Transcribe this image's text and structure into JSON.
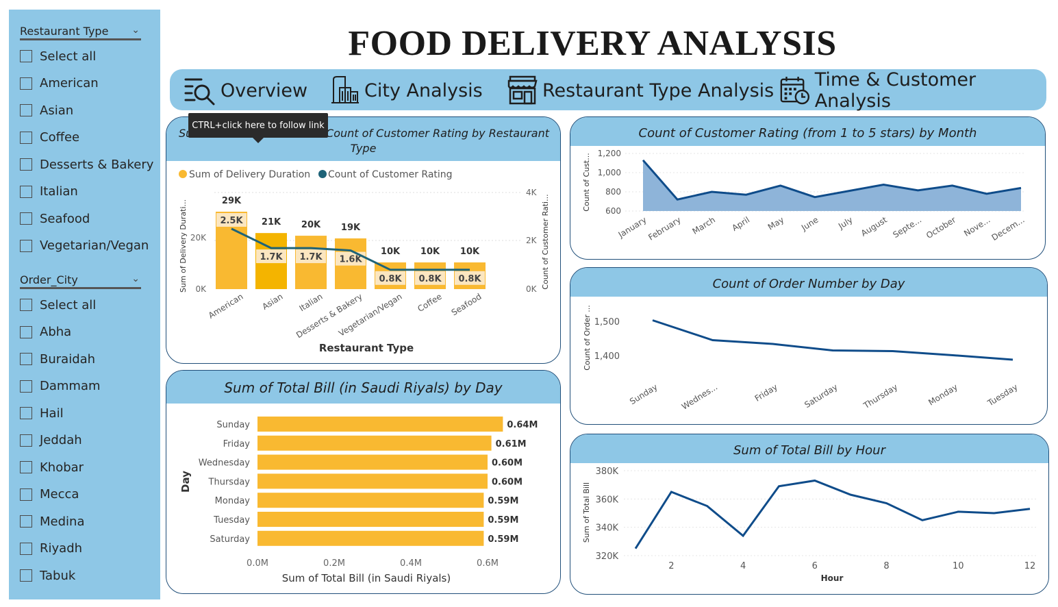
{
  "title": "FOOD DELIVERY ANALYSIS",
  "colors": {
    "panel": "#8ec7e6",
    "bar": "#f9b931",
    "bar_dark": "#f4b400",
    "line": "#0f4c8a",
    "line_teal": "#1e6378",
    "area": "#8eb4d9"
  },
  "slicer_restaurant": {
    "title": "Restaurant Type",
    "items": [
      "Select all",
      "American",
      "Asian",
      "Coffee",
      "Desserts & Bakery",
      "Italian",
      "Seafood",
      "Vegetarian/Vegan"
    ]
  },
  "slicer_city": {
    "title": "Order_City",
    "items": [
      "Select all",
      "Abha",
      "Buraidah",
      "Dammam",
      "Hail",
      "Jeddah",
      "Khobar",
      "Mecca",
      "Medina",
      "Riyadh",
      "Tabuk"
    ]
  },
  "nav": {
    "overview": "Overview",
    "city": "City Analysis",
    "restaurant": "Restaurant Type Analysis",
    "time": "Time & Customer Analysis"
  },
  "tooltip": "CTRL+click here to follow link",
  "combo_chart": {
    "title_left": "Su",
    "title_right": "d Count of Customer Rating by Restaurant",
    "title_line2": "Type",
    "legend": [
      "Sum of Delivery Duration",
      "Count of Customer Rating"
    ],
    "xlabel": "Restaurant Type",
    "ylabel_left": "Sum of Delivery Durati...",
    "ylabel_right": "Count of Customer Rati...",
    "left_ticks": [
      "0K",
      "20K"
    ],
    "right_ticks": [
      "0K",
      "2K",
      "4K"
    ]
  },
  "rating_month": {
    "title": "Count of Customer Rating (from 1 to 5 stars) by Month",
    "ylabel": "Count of Cust...",
    "yticks": [
      "600",
      "800",
      "1,000",
      "1,200"
    ]
  },
  "orders_day": {
    "title": "Count of Order Number by Day",
    "ylabel": "Count of Order ...",
    "yticks": [
      "1,400",
      "1,500"
    ]
  },
  "bill_day": {
    "title": "Sum of Total Bill (in Saudi Riyals) by Day",
    "ylabel": "Day",
    "xlabel": "Sum of Total Bill (in Saudi Riyals)",
    "xticks": [
      "0.0M",
      "0.2M",
      "0.4M",
      "0.6M"
    ]
  },
  "bill_hour": {
    "title": "Sum of Total Bill by Hour",
    "ylabel": "Sum of Total Bill",
    "xlabel": "Hour",
    "yticks": [
      "320K",
      "340K",
      "360K",
      "380K"
    ],
    "xticks": [
      "2",
      "4",
      "6",
      "8",
      "10",
      "12"
    ]
  },
  "chart_data": [
    {
      "type": "bar",
      "id": "combo",
      "categories": [
        "American",
        "Asian",
        "Italian",
        "Desserts & Bakery",
        "Vegetarian/Vegan",
        "Coffee",
        "Seafood"
      ],
      "series": [
        {
          "name": "Sum of Delivery Duration",
          "values": [
            29000,
            21000,
            20000,
            19000,
            10000,
            10000,
            10000
          ],
          "labels": [
            "29K",
            "21K",
            "20K",
            "19K",
            "10K",
            "10K",
            "10K"
          ]
        },
        {
          "name": "Count of Customer Rating",
          "type": "line",
          "values": [
            2500,
            1700,
            1700,
            1600,
            800,
            800,
            800
          ],
          "labels": [
            "2.5K",
            "1.7K",
            "1.7K",
            "1.6K",
            "0.8K",
            "0.8K",
            "0.8K"
          ]
        }
      ],
      "ylim_left": [
        0,
        37000
      ],
      "ylim_right": [
        0,
        4000
      ]
    },
    {
      "type": "area",
      "id": "rating_month",
      "categories": [
        "January",
        "February",
        "March",
        "April",
        "May",
        "June",
        "July",
        "August",
        "Septe...",
        "October",
        "Nove...",
        "Decem..."
      ],
      "values": [
        1130,
        720,
        800,
        770,
        865,
        745,
        810,
        875,
        815,
        865,
        780,
        840
      ],
      "ylim": [
        600,
        1200
      ]
    },
    {
      "type": "line",
      "id": "orders_day",
      "categories": [
        "Sunday",
        "Wednes...",
        "Friday",
        "Saturday",
        "Thursday",
        "Monday",
        "Tuesday"
      ],
      "values": [
        1503,
        1445,
        1434,
        1415,
        1413,
        1401,
        1388
      ],
      "ylim": [
        1350,
        1520
      ]
    },
    {
      "type": "bar",
      "id": "bill_day",
      "orientation": "horizontal",
      "categories": [
        "Sunday",
        "Friday",
        "Wednesday",
        "Thursday",
        "Monday",
        "Tuesday",
        "Saturday"
      ],
      "values": [
        0.64,
        0.61,
        0.6,
        0.6,
        0.59,
        0.59,
        0.59
      ],
      "labels": [
        "0.64M",
        "0.61M",
        "0.60M",
        "0.60M",
        "0.59M",
        "0.59M",
        "0.59M"
      ],
      "xlim": [
        0,
        0.7
      ]
    },
    {
      "type": "line",
      "id": "bill_hour",
      "x": [
        1,
        2,
        3,
        4,
        5,
        6,
        7,
        8,
        9,
        10,
        11,
        12
      ],
      "values": [
        325000,
        365000,
        355000,
        334000,
        369000,
        373000,
        363000,
        357000,
        345000,
        351000,
        350000,
        353000
      ],
      "xlim": [
        0.7,
        12.2
      ],
      "ylim": [
        318000,
        382000
      ]
    }
  ]
}
